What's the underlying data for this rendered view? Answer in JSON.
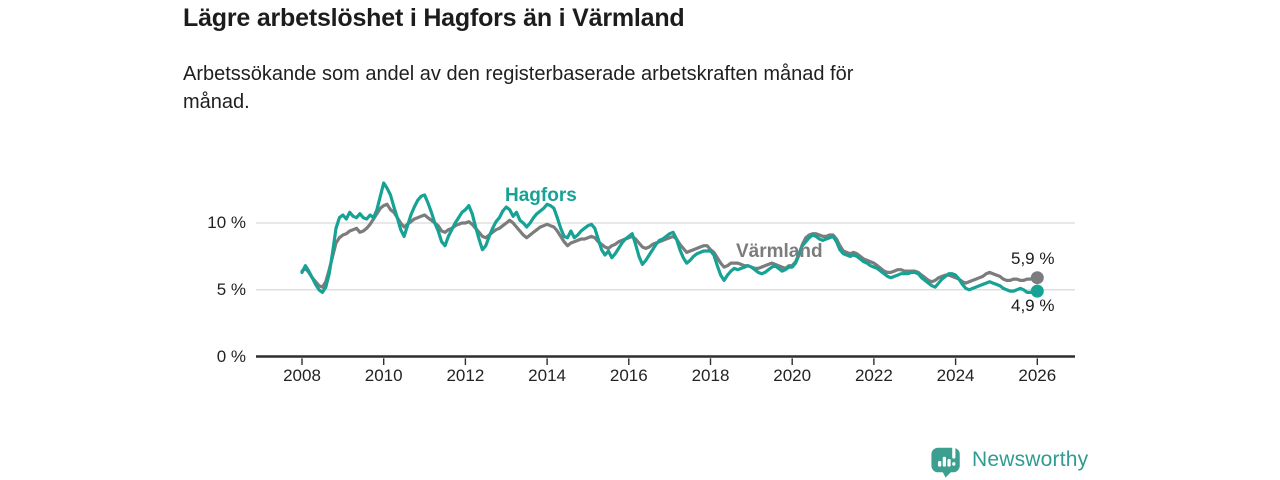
{
  "header": {
    "title": "Lägre arbetslöshet i Hagfors än i Värmland",
    "subtitle_line1": "Arbetssökande som andel av den registerbaserade arbetskraften månad för",
    "subtitle_line2": "månad."
  },
  "footer": {
    "brand": "Newsworthy",
    "brand_text_color": "#2f9c92",
    "logo_color": "#3ba08f"
  },
  "chart_data": {
    "type": "line",
    "title": "Lägre arbetslöshet i Hagfors än i Värmland",
    "subtitle": "Arbetssökande som andel av den registerbaserade arbetskraften månad för månad.",
    "x_start": 2008.0,
    "x_step_months": 1,
    "xlim": [
      2008,
      2026.1
    ],
    "ylim": [
      0,
      14
    ],
    "grid": true,
    "legend_position": "inline-labels",
    "colors": {
      "grid": "#d9d9d9",
      "axis": "#2e2e2e",
      "tick_text": "#232323"
    },
    "x_axis": {
      "ticks": [
        2008,
        2010,
        2012,
        2014,
        2016,
        2018,
        2020,
        2022,
        2024,
        2026
      ]
    },
    "y_axis": {
      "ticks": [
        {
          "value": 0,
          "label": "0 %"
        },
        {
          "value": 5,
          "label": "5 %"
        },
        {
          "value": 10,
          "label": "10 %"
        }
      ]
    },
    "series": [
      {
        "id": "hagfors",
        "name": "Hagfors",
        "color": "#16a294",
        "end_label": "4,9 %",
        "end_value": 4.9,
        "values": [
          6.3,
          6.8,
          6.4,
          5.9,
          5.4,
          5.0,
          4.8,
          5.2,
          6.2,
          7.8,
          9.6,
          10.4,
          10.6,
          10.3,
          10.8,
          10.5,
          10.4,
          10.7,
          10.4,
          10.3,
          10.6,
          10.4,
          11.0,
          12.0,
          13.0,
          12.6,
          12.1,
          11.2,
          10.4,
          9.5,
          9.0,
          9.8,
          10.6,
          11.2,
          11.7,
          12.0,
          12.1,
          11.5,
          10.8,
          10.0,
          9.4,
          8.6,
          8.3,
          9.0,
          9.5,
          10.0,
          10.4,
          10.8,
          11.0,
          11.3,
          10.7,
          9.7,
          8.8,
          8.0,
          8.3,
          9.0,
          9.6,
          10.1,
          10.4,
          10.9,
          11.2,
          11.0,
          10.5,
          10.8,
          10.2,
          10.0,
          9.7,
          10.0,
          10.4,
          10.7,
          10.9,
          11.1,
          11.4,
          11.3,
          11.1,
          10.4,
          9.6,
          9.0,
          8.9,
          9.4,
          8.9,
          9.1,
          9.4,
          9.6,
          9.8,
          9.9,
          9.6,
          8.8,
          8.0,
          7.6,
          7.9,
          7.4,
          7.7,
          8.1,
          8.5,
          8.8,
          9.0,
          9.2,
          8.4,
          7.5,
          6.9,
          7.2,
          7.6,
          8.0,
          8.4,
          8.7,
          8.8,
          9.0,
          9.2,
          9.3,
          8.8,
          8.0,
          7.4,
          7.0,
          7.2,
          7.5,
          7.7,
          7.8,
          7.9,
          7.9,
          7.9,
          7.6,
          6.8,
          6.1,
          5.7,
          6.1,
          6.4,
          6.6,
          6.5,
          6.6,
          6.7,
          6.8,
          6.7,
          6.5,
          6.3,
          6.2,
          6.3,
          6.5,
          6.7,
          6.8,
          6.6,
          6.4,
          6.5,
          6.7,
          6.7,
          7.0,
          7.6,
          8.3,
          8.6,
          8.9,
          9.1,
          9.0,
          8.8,
          8.7,
          8.8,
          8.9,
          9.0,
          8.6,
          8.0,
          7.7,
          7.6,
          7.5,
          7.6,
          7.5,
          7.3,
          7.1,
          7.0,
          6.8,
          6.7,
          6.6,
          6.4,
          6.2,
          6.0,
          5.9,
          6.0,
          6.1,
          6.2,
          6.2,
          6.2,
          6.3,
          6.3,
          6.2,
          5.9,
          5.7,
          5.5,
          5.3,
          5.2,
          5.5,
          5.8,
          6.0,
          6.2,
          6.2,
          6.1,
          5.8,
          5.4,
          5.1,
          5.0,
          5.1,
          5.2,
          5.3,
          5.4,
          5.5,
          5.6,
          5.5,
          5.4,
          5.3,
          5.1,
          5.0,
          4.9,
          4.9,
          5.0,
          5.1,
          5.0,
          4.8,
          4.8,
          4.8,
          4.9
        ]
      },
      {
        "id": "varmland",
        "name": "Värmland",
        "color": "#7b7c7e",
        "end_label": "5,9 %",
        "end_value": 5.9,
        "values": [
          6.4,
          6.6,
          6.3,
          5.9,
          5.6,
          5.3,
          5.2,
          5.6,
          6.5,
          7.5,
          8.5,
          8.9,
          9.1,
          9.2,
          9.4,
          9.5,
          9.6,
          9.3,
          9.4,
          9.6,
          9.9,
          10.3,
          10.7,
          11.1,
          11.3,
          11.4,
          11.0,
          10.8,
          10.4,
          10.0,
          9.7,
          9.9,
          10.1,
          10.3,
          10.4,
          10.5,
          10.6,
          10.4,
          10.2,
          10.0,
          9.8,
          9.4,
          9.3,
          9.5,
          9.6,
          9.8,
          9.9,
          10.0,
          10.0,
          10.1,
          9.9,
          9.6,
          9.3,
          9.0,
          8.9,
          9.1,
          9.3,
          9.5,
          9.6,
          9.8,
          10.0,
          10.2,
          10.0,
          9.7,
          9.4,
          9.1,
          8.9,
          9.1,
          9.3,
          9.5,
          9.7,
          9.8,
          9.9,
          9.8,
          9.7,
          9.4,
          9.0,
          8.6,
          8.3,
          8.5,
          8.6,
          8.7,
          8.8,
          8.8,
          8.9,
          9.0,
          8.9,
          8.6,
          8.4,
          8.2,
          8.1,
          8.3,
          8.4,
          8.6,
          8.7,
          8.8,
          8.9,
          9.0,
          8.8,
          8.5,
          8.2,
          8.1,
          8.2,
          8.4,
          8.5,
          8.6,
          8.7,
          8.8,
          8.9,
          9.0,
          8.8,
          8.4,
          8.1,
          7.8,
          7.9,
          8.0,
          8.1,
          8.2,
          8.3,
          8.3,
          8.0,
          7.8,
          7.4,
          7.0,
          6.7,
          6.8,
          7.0,
          7.0,
          7.0,
          6.9,
          6.8,
          6.8,
          6.7,
          6.6,
          6.6,
          6.7,
          6.8,
          6.9,
          7.0,
          6.9,
          6.8,
          6.7,
          6.6,
          6.8,
          6.8,
          7.1,
          7.7,
          8.4,
          8.9,
          9.1,
          9.2,
          9.2,
          9.1,
          9.0,
          9.0,
          9.1,
          9.1,
          8.8,
          8.3,
          7.9,
          7.8,
          7.7,
          7.8,
          7.7,
          7.5,
          7.3,
          7.2,
          7.1,
          7.0,
          6.8,
          6.6,
          6.4,
          6.3,
          6.3,
          6.4,
          6.5,
          6.5,
          6.4,
          6.4,
          6.4,
          6.4,
          6.3,
          6.1,
          5.9,
          5.7,
          5.6,
          5.7,
          5.9,
          6.0,
          6.1,
          6.1,
          6.0,
          5.9,
          5.8,
          5.6,
          5.5,
          5.6,
          5.7,
          5.8,
          5.9,
          6.0,
          6.2,
          6.3,
          6.2,
          6.1,
          6.0,
          5.8,
          5.7,
          5.7,
          5.8,
          5.8,
          5.7,
          5.7,
          5.8,
          5.8,
          5.9,
          5.9
        ]
      }
    ]
  }
}
